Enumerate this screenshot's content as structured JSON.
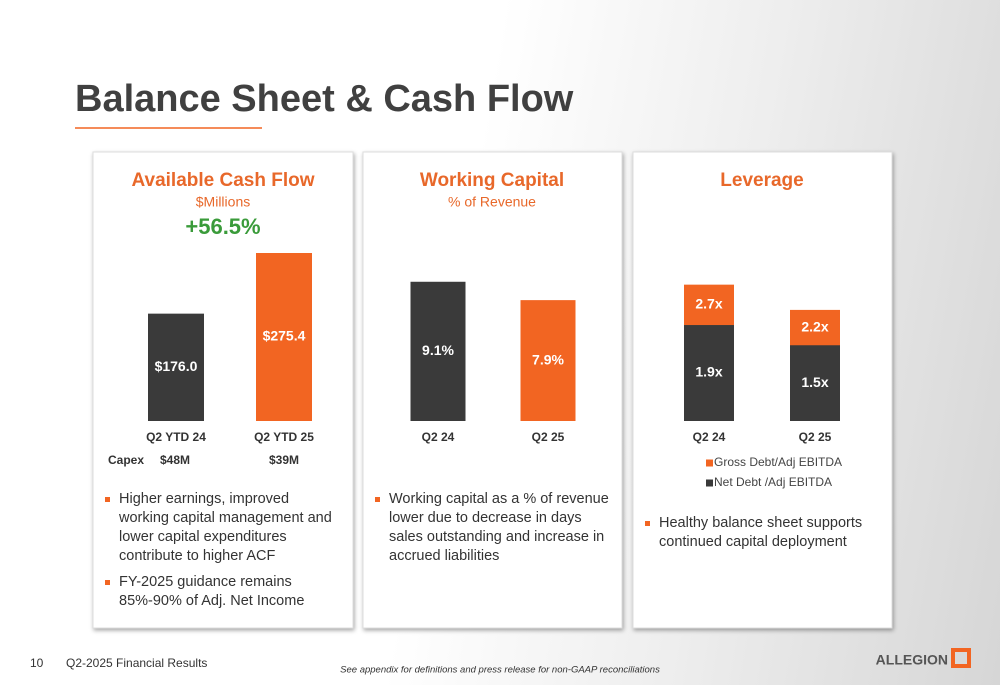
{
  "title": "Balance Sheet & Cash Flow",
  "footer": {
    "page": "10",
    "deck": "Q2-2025 Financial Results",
    "note": "See appendix for definitions and press release for non-GAAP reconciliations",
    "logo": "ALLEGION"
  },
  "chart_data": [
    {
      "type": "bar",
      "title": "Available Cash Flow",
      "subtitle": "$Millions",
      "annotation": "+56.5%",
      "categories": [
        "Q2 YTD 24",
        "Q2 YTD  25"
      ],
      "values": [
        176.0,
        275.4
      ],
      "value_labels": [
        "$176.0",
        "$275.4"
      ],
      "colors": [
        "#3a3a3a",
        "#f26522"
      ],
      "capex": {
        "label": "Capex",
        "values": [
          "$48M",
          "$39M"
        ]
      },
      "notes": [
        "Higher earnings, improved working capital management and lower capital expenditures contribute to higher ACF",
        "FY-2025 guidance remains 85%-90% of Adj. Net Income"
      ]
    },
    {
      "type": "bar",
      "title": "Working Capital",
      "subtitle": "% of Revenue",
      "categories": [
        "Q2 24",
        "Q2 25"
      ],
      "values": [
        9.1,
        7.9
      ],
      "value_labels": [
        "9.1%",
        "7.9%"
      ],
      "colors": [
        "#3a3a3a",
        "#f26522"
      ],
      "notes": [
        "Working capital as a % of revenue lower due to decrease in days sales outstanding and increase in accrued liabilities"
      ]
    },
    {
      "type": "bar",
      "title": "Leverage",
      "overlap": true,
      "categories": [
        "Q2 24",
        "Q2 25"
      ],
      "series": [
        {
          "name": "Gross Debt/Adj EBITDA",
          "color": "#f26522",
          "values": [
            2.7,
            2.2
          ],
          "value_labels": [
            "2.7x",
            "2.2x"
          ]
        },
        {
          "name": "Net Debt /Adj EBITDA",
          "color": "#3a3a3a",
          "values": [
            1.9,
            1.5
          ],
          "value_labels": [
            "1.9x",
            "1.5x"
          ]
        }
      ],
      "notes": [
        "Healthy balance sheet supports continued capital deployment"
      ]
    }
  ]
}
